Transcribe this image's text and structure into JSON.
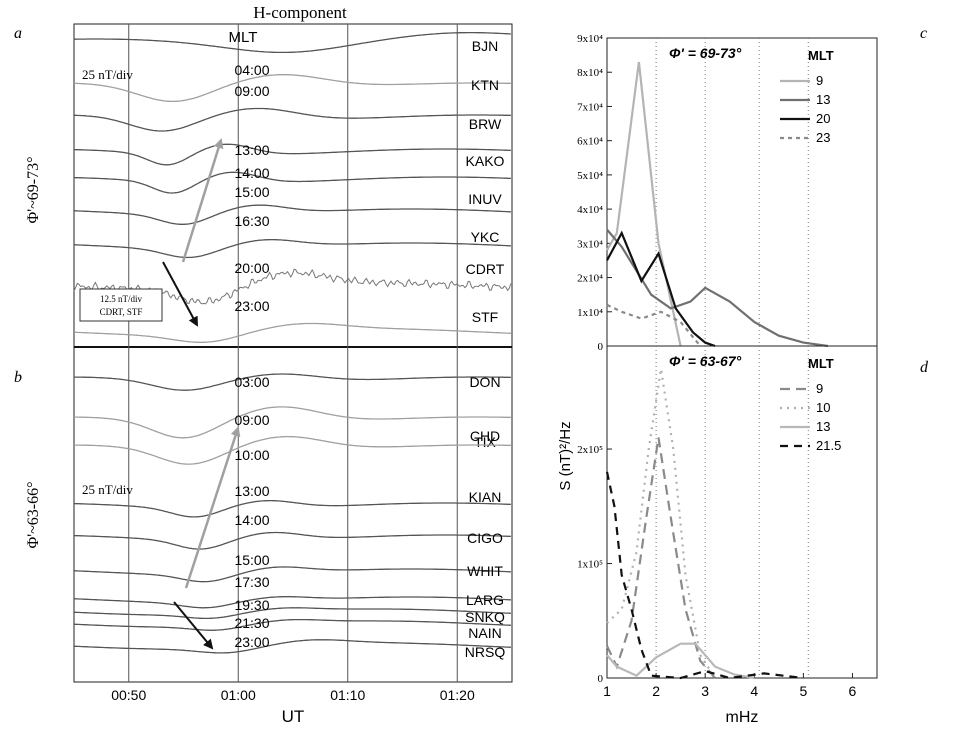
{
  "figure": {
    "title": "H-component",
    "panel_labels": [
      "a",
      "b",
      "c",
      "d"
    ]
  },
  "chart_data": [
    {
      "id": "panel-a",
      "type": "line",
      "title": "H-component",
      "ylabel": "Φ'~69-73°",
      "xlabel": "UT",
      "xticks": [
        "00:50",
        "01:00",
        "01:10",
        "01:20"
      ],
      "x_range": [
        "00:45",
        "01:25"
      ],
      "grid": "vertical lines at 00:50, 01:00, 01:10, 01:20",
      "mlt_header": "MLT",
      "scale_label": "25 nT/div",
      "inset_scale_label": [
        "12.5 nT/div",
        "CDRT, STF"
      ],
      "series": [
        {
          "name": "BJN",
          "mlt": "",
          "color": "#555555"
        },
        {
          "name": "KTN",
          "mlt": "04:00",
          "color": "#a0a0a0"
        },
        {
          "name": "BRW",
          "mlt": "09:00",
          "color": "#555555"
        },
        {
          "name": "KAKO",
          "mlt": "13:00",
          "color": "#555555"
        },
        {
          "name": "INUV",
          "mlt": "14:00",
          "color": "#555555"
        },
        {
          "name": "YKC",
          "mlt": "15:00",
          "color": "#555555"
        },
        {
          "name": "CDRT",
          "mlt": "16:30",
          "color": "#555555"
        },
        {
          "name": "STF",
          "mlt": "20:00",
          "color": "#777777"
        },
        {
          "name": "",
          "mlt": "23:00",
          "color": "#a0a0a0"
        }
      ],
      "arrows": [
        "grey arrow: westward phase propagation",
        "black arrow: eastward phase propagation"
      ]
    },
    {
      "id": "panel-b",
      "type": "line",
      "ylabel": "Φ'~63-66°",
      "xlabel": "UT",
      "xticks": [
        "00:50",
        "01:00",
        "01:10",
        "01:20"
      ],
      "x_range": [
        "00:45",
        "01:25"
      ],
      "scale_label": "25 nT/div",
      "series": [
        {
          "name": "DON",
          "mlt": "03:00",
          "color": "#555555"
        },
        {
          "name": "TIX",
          "mlt": "09:00",
          "color": "#a0a0a0"
        },
        {
          "name": "CHD",
          "mlt": "10:00",
          "color": "#a0a0a0"
        },
        {
          "name": "KIAN",
          "mlt": "13:00",
          "color": "#555555"
        },
        {
          "name": "CIGO",
          "mlt": "14:00",
          "color": "#555555"
        },
        {
          "name": "WHIT",
          "mlt": "15:00",
          "color": "#555555"
        },
        {
          "name": "LARG",
          "mlt": "17:30",
          "color": "#555555"
        },
        {
          "name": "SNKQ",
          "mlt": "19:30",
          "color": "#555555"
        },
        {
          "name": "NAIN",
          "mlt": "21:30",
          "color": "#555555"
        },
        {
          "name": "NRSQ",
          "mlt": "23:00",
          "color": "#555555"
        }
      ]
    },
    {
      "id": "panel-c",
      "type": "line",
      "title": "Φ' = 69-73°",
      "legend_title": "MLT",
      "legend_placement": "top-right",
      "ylabel": "S (nT)²/Hz",
      "xlabel": "mHz",
      "ylim": [
        0,
        90000
      ],
      "yticks": [
        {
          "value": 0,
          "label": "0"
        },
        {
          "value": 10000,
          "label": "1x10⁴"
        },
        {
          "value": 20000,
          "label": "2x10⁴"
        },
        {
          "value": 30000,
          "label": "3x10⁴"
        },
        {
          "value": 40000,
          "label": "4x10⁴"
        },
        {
          "value": 50000,
          "label": "5x10⁴"
        },
        {
          "value": 60000,
          "label": "6x10⁴"
        },
        {
          "value": 70000,
          "label": "7x10⁴"
        },
        {
          "value": 80000,
          "label": "8x10⁴"
        },
        {
          "value": 90000,
          "label": "9x10⁴"
        }
      ],
      "xlim": [
        1,
        6.5
      ],
      "vlines": [
        2,
        3,
        4.1,
        5.1
      ],
      "series": [
        {
          "name": "9",
          "color": "#b4b4b4",
          "dash": "",
          "x": [
            1.0,
            1.2,
            1.65,
            2.05,
            2.5
          ],
          "y": [
            28000,
            33000,
            83000,
            30000,
            0
          ]
        },
        {
          "name": "13",
          "color": "#707070",
          "dash": "",
          "x": [
            1.0,
            1.3,
            1.9,
            2.3,
            2.7,
            3.0,
            3.5,
            4.0,
            4.5,
            5.0,
            5.5
          ],
          "y": [
            34000,
            29000,
            15000,
            11000,
            13000,
            17000,
            13000,
            7000,
            3000,
            1000,
            0
          ]
        },
        {
          "name": "20",
          "color": "#111111",
          "dash": "",
          "x": [
            1.0,
            1.3,
            1.7,
            2.05,
            2.4,
            2.75,
            3.0,
            3.2
          ],
          "y": [
            25000,
            33000,
            19000,
            27000,
            11000,
            4000,
            1000,
            0
          ]
        },
        {
          "name": "23",
          "color": "#8a8a8a",
          "dash": "4,4",
          "x": [
            1.0,
            1.3,
            1.7,
            2.1,
            2.5,
            2.9
          ],
          "y": [
            12000,
            10000,
            8000,
            10000,
            7000,
            0
          ]
        }
      ]
    },
    {
      "id": "panel-d",
      "type": "line",
      "title": "Φ' = 63-67°",
      "legend_title": "MLT",
      "legend_placement": "top-right",
      "ylabel": "S (nT)²/Hz",
      "xlabel": "mHz",
      "ylim": [
        0,
        290000
      ],
      "yticks": [
        {
          "value": 0,
          "label": "0"
        },
        {
          "value": 100000,
          "label": "1x10⁵"
        },
        {
          "value": 200000,
          "label": "2x10⁵"
        }
      ],
      "xlim": [
        1,
        6.5
      ],
      "xticks": [
        "1",
        "2",
        "3",
        "4",
        "5",
        "6"
      ],
      "vlines": [
        2,
        3,
        4.1,
        5.1
      ],
      "series": [
        {
          "name": "9",
          "color": "#8a8a8a",
          "dash": "10,6",
          "x": [
            1.0,
            1.2,
            1.5,
            1.8,
            2.05,
            2.3,
            2.6,
            2.9,
            3.2
          ],
          "y": [
            28000,
            10000,
            50000,
            140000,
            210000,
            140000,
            60000,
            15000,
            0
          ]
        },
        {
          "name": "10",
          "color": "#b0b0b0",
          "dash": "2,5",
          "x": [
            1.0,
            1.3,
            1.6,
            1.85,
            2.1,
            2.35,
            2.6,
            2.9,
            3.2
          ],
          "y": [
            48000,
            60000,
            110000,
            200000,
            270000,
            200000,
            90000,
            20000,
            0
          ]
        },
        {
          "name": "13",
          "color": "#b8b8b8",
          "dash": "",
          "x": [
            1.0,
            1.2,
            1.6,
            2.0,
            2.5,
            2.8,
            3.2,
            3.6,
            4.0
          ],
          "y": [
            20000,
            10000,
            2000,
            18000,
            30000,
            30000,
            10000,
            3000,
            0
          ]
        },
        {
          "name": "21.5",
          "color": "#111111",
          "dash": "8,6",
          "x": [
            1.0,
            1.15,
            1.3,
            1.5,
            1.7,
            1.9,
            2.5,
            3.0,
            3.5,
            4.2,
            5.0
          ],
          "y": [
            180000,
            150000,
            90000,
            60000,
            25000,
            2000,
            0,
            6000,
            0,
            4000,
            0
          ]
        }
      ]
    }
  ]
}
